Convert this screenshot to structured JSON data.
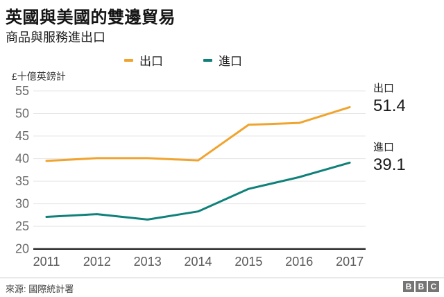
{
  "header": {
    "title": "英國與美國的雙邊貿易",
    "subtitle": "商品與服務進出口"
  },
  "legend": [
    {
      "label": "出口",
      "color": "#f0a42e"
    },
    {
      "label": "進口",
      "color": "#0f817a"
    }
  ],
  "chart_data": {
    "type": "line",
    "title": "英國與美國的雙邊貿易",
    "subtitle": "商品與服務進出口",
    "unit_label": "£十億英鎊計",
    "x": [
      "2011",
      "2012",
      "2013",
      "2014",
      "2015",
      "2016",
      "2017"
    ],
    "series": [
      {
        "name": "出口",
        "color": "#f0a42e",
        "values": [
          39.5,
          40.1,
          40.1,
          39.6,
          47.5,
          47.9,
          51.4
        ]
      },
      {
        "name": "進口",
        "color": "#0f817a",
        "values": [
          27.1,
          27.7,
          26.5,
          28.3,
          33.3,
          35.9,
          39.1
        ]
      }
    ],
    "ylim": [
      20,
      55
    ],
    "ytick_step": 5,
    "yticks": [
      20,
      25,
      30,
      35,
      40,
      45,
      50,
      55
    ],
    "grid": "horizontal",
    "legend_position": "top",
    "end_labels": [
      {
        "series": "出口",
        "value": "51.4"
      },
      {
        "series": "進口",
        "value": "39.1"
      }
    ]
  },
  "annotations": {
    "export": {
      "label": "出口",
      "value": "51.4"
    },
    "import": {
      "label": "進口",
      "value": "39.1"
    }
  },
  "footer": {
    "source": "來源: 國際統計署",
    "logo_letters": [
      "B",
      "B",
      "C"
    ]
  },
  "colors": {
    "export_line": "#f0a42e",
    "import_line": "#0f817a",
    "gridline": "#e5e5e5",
    "axis": "#2e2e2e",
    "tick_text": "#6a6a6a",
    "year_text": "#595959"
  }
}
